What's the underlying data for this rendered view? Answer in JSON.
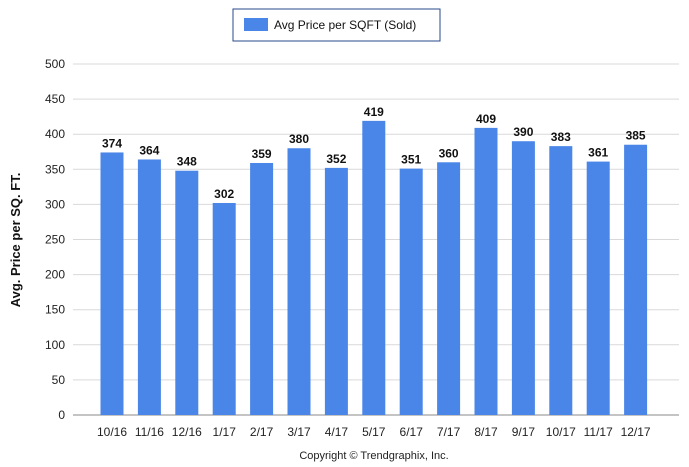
{
  "colors": {
    "bar": "#4a86e8",
    "grid": "#d9d9d9",
    "legend_border": "#2a4a8a"
  },
  "legend": {
    "label": "Avg Price per SQFT (Sold)"
  },
  "footer": {
    "copyright": "Copyright © Trendgraphix, Inc."
  },
  "chart_data": {
    "type": "bar",
    "title": "",
    "xlabel": "",
    "ylabel": "Avg. Price per SQ. FT.",
    "ylim": [
      0,
      500
    ],
    "yticks": [
      0,
      50,
      100,
      150,
      200,
      250,
      300,
      350,
      400,
      450,
      500
    ],
    "grid": true,
    "legend_position": "top-center",
    "categories": [
      "10/16",
      "11/16",
      "12/16",
      "1/17",
      "2/17",
      "3/17",
      "4/17",
      "5/17",
      "6/17",
      "7/17",
      "8/17",
      "9/17",
      "10/17",
      "11/17",
      "12/17"
    ],
    "series": [
      {
        "name": "Avg Price per SQFT (Sold)",
        "values": [
          374,
          364,
          348,
          302,
          359,
          380,
          352,
          419,
          351,
          360,
          409,
          390,
          383,
          361,
          385
        ]
      }
    ]
  }
}
